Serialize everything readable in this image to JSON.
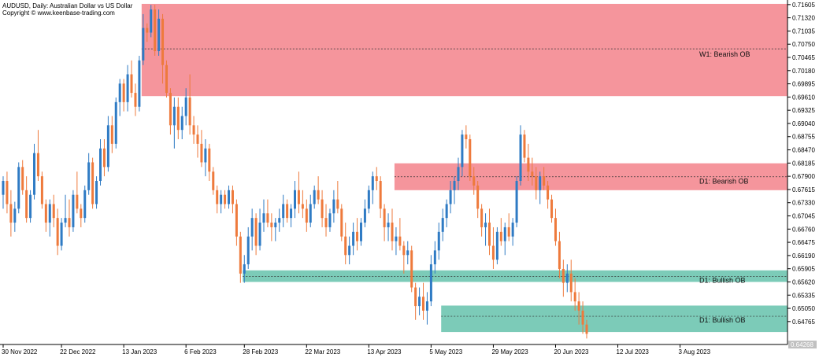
{
  "header": {
    "line1": "AUDUSD, Daily:  Australian Dollar vs US Dollar",
    "line2": "Copyright © www.keenbase-trading.com"
  },
  "chart_data": {
    "type": "candlestick",
    "symbol": "AUDUSD",
    "timeframe": "Daily",
    "ylim": [
      0.6427,
      0.7167
    ],
    "grid": false,
    "y_ticks": [
      "0.71605",
      "0.71320",
      "0.71035",
      "0.70750",
      "0.70465",
      "0.70180",
      "0.69895",
      "0.69610",
      "0.69325",
      "0.69040",
      "0.68755",
      "0.68470",
      "0.68185",
      "0.67900",
      "0.67615",
      "0.67330",
      "0.67045",
      "0.66760",
      "0.66475",
      "0.66190",
      "0.65905",
      "0.65620",
      "0.65335",
      "0.65050",
      "0.64765"
    ],
    "x_ticks": [
      "30 Nov 2022",
      "22 Dec 2022",
      "13 Jan 2023",
      "6 Feb 2023",
      "28 Feb 2023",
      "22 Mar 2023",
      "13 Apr 2023",
      "5 May 2023",
      "29 May 2023",
      "20 Jun 2023",
      "12 Jul 2023",
      "3 Aug 2023"
    ],
    "current_price": "0.64268",
    "colors": {
      "up": "#2f7bc4",
      "down": "#ee7a3c",
      "bearish_zone": "#f5959c",
      "bullish_zone": "#7ccbb8"
    },
    "zones": [
      {
        "label": "W1: Bearish OB",
        "type": "bearish",
        "top": 0.7162,
        "bottom": 0.6963,
        "mid": 0.7065,
        "start": "25 Jan 2023"
      },
      {
        "label": "D1: Bearish OB",
        "type": "bearish",
        "top": 0.6818,
        "bottom": 0.676,
        "mid": 0.6789,
        "start": "8 May 2023"
      },
      {
        "label": "D1: Bullish OB",
        "type": "bullish",
        "top": 0.6587,
        "bottom": 0.6562,
        "mid": 0.6574,
        "start": "2 Mar 2023"
      },
      {
        "label": "D1: Bullish OB",
        "type": "bullish",
        "top": 0.6511,
        "bottom": 0.6454,
        "mid": 0.6488,
        "start": "29 May 2023"
      }
    ],
    "candles": [
      [
        0.675,
        0.679,
        0.672,
        0.678
      ],
      [
        0.678,
        0.68,
        0.671,
        0.673
      ],
      [
        0.673,
        0.676,
        0.666,
        0.669
      ],
      [
        0.669,
        0.6735,
        0.667,
        0.672
      ],
      [
        0.672,
        0.682,
        0.671,
        0.681
      ],
      [
        0.681,
        0.6825,
        0.675,
        0.676
      ],
      [
        0.676,
        0.679,
        0.669,
        0.67
      ],
      [
        0.67,
        0.676,
        0.669,
        0.675
      ],
      [
        0.675,
        0.686,
        0.674,
        0.684
      ],
      [
        0.684,
        0.689,
        0.678,
        0.679
      ],
      [
        0.679,
        0.68,
        0.672,
        0.673
      ],
      [
        0.673,
        0.674,
        0.667,
        0.669
      ],
      [
        0.669,
        0.674,
        0.666,
        0.673
      ],
      [
        0.673,
        0.675,
        0.668,
        0.67
      ],
      [
        0.67,
        0.672,
        0.662,
        0.664
      ],
      [
        0.664,
        0.67,
        0.663,
        0.669
      ],
      [
        0.669,
        0.675,
        0.668,
        0.67
      ],
      [
        0.67,
        0.674,
        0.666,
        0.668
      ],
      [
        0.668,
        0.676,
        0.667,
        0.675
      ],
      [
        0.675,
        0.68,
        0.671,
        0.672
      ],
      [
        0.672,
        0.673,
        0.668,
        0.67
      ],
      [
        0.67,
        0.677,
        0.669,
        0.676
      ],
      [
        0.676,
        0.684,
        0.675,
        0.682
      ],
      [
        0.682,
        0.683,
        0.672,
        0.673
      ],
      [
        0.673,
        0.679,
        0.672,
        0.678
      ],
      [
        0.678,
        0.687,
        0.677,
        0.685
      ],
      [
        0.685,
        0.687,
        0.679,
        0.681
      ],
      [
        0.681,
        0.692,
        0.68,
        0.69
      ],
      [
        0.69,
        0.692,
        0.684,
        0.686
      ],
      [
        0.686,
        0.696,
        0.685,
        0.695
      ],
      [
        0.695,
        0.7,
        0.692,
        0.699
      ],
      [
        0.699,
        0.7,
        0.693,
        0.695
      ],
      [
        0.695,
        0.703,
        0.693,
        0.701
      ],
      [
        0.701,
        0.704,
        0.696,
        0.697
      ],
      [
        0.697,
        0.699,
        0.692,
        0.694
      ],
      [
        0.694,
        0.705,
        0.693,
        0.704
      ],
      [
        0.704,
        0.714,
        0.703,
        0.711
      ],
      [
        0.711,
        0.712,
        0.708,
        0.71
      ],
      [
        0.71,
        0.716,
        0.709,
        0.715
      ],
      [
        0.715,
        0.716,
        0.705,
        0.706
      ],
      [
        0.706,
        0.715,
        0.705,
        0.713
      ],
      [
        0.713,
        0.714,
        0.699,
        0.703
      ],
      [
        0.703,
        0.704,
        0.696,
        0.697
      ],
      [
        0.697,
        0.698,
        0.688,
        0.69
      ],
      [
        0.69,
        0.696,
        0.685,
        0.694
      ],
      [
        0.694,
        0.696,
        0.687,
        0.689
      ],
      [
        0.689,
        0.694,
        0.687,
        0.692
      ],
      [
        0.692,
        0.698,
        0.69,
        0.696
      ],
      [
        0.696,
        0.701,
        0.688,
        0.69
      ],
      [
        0.69,
        0.692,
        0.686,
        0.688
      ],
      [
        0.688,
        0.69,
        0.683,
        0.686
      ],
      [
        0.686,
        0.689,
        0.681,
        0.682
      ],
      [
        0.682,
        0.687,
        0.679,
        0.685
      ],
      [
        0.685,
        0.686,
        0.678,
        0.68
      ],
      [
        0.68,
        0.681,
        0.675,
        0.676
      ],
      [
        0.676,
        0.677,
        0.671,
        0.673
      ],
      [
        0.673,
        0.676,
        0.671,
        0.675
      ],
      [
        0.675,
        0.676,
        0.672,
        0.673
      ],
      [
        0.673,
        0.677,
        0.672,
        0.676
      ],
      [
        0.676,
        0.677,
        0.671,
        0.673
      ],
      [
        0.673,
        0.674,
        0.664,
        0.666
      ],
      [
        0.666,
        0.667,
        0.656,
        0.658
      ],
      [
        0.658,
        0.662,
        0.656,
        0.66
      ],
      [
        0.66,
        0.668,
        0.659,
        0.666
      ],
      [
        0.666,
        0.672,
        0.663,
        0.67
      ],
      [
        0.67,
        0.671,
        0.662,
        0.664
      ],
      [
        0.664,
        0.672,
        0.663,
        0.669
      ],
      [
        0.669,
        0.674,
        0.667,
        0.671
      ],
      [
        0.671,
        0.674,
        0.668,
        0.669
      ],
      [
        0.669,
        0.671,
        0.665,
        0.668
      ],
      [
        0.668,
        0.67,
        0.665,
        0.669
      ],
      [
        0.669,
        0.672,
        0.667,
        0.67
      ],
      [
        0.67,
        0.675,
        0.668,
        0.673
      ],
      [
        0.673,
        0.674,
        0.669,
        0.67
      ],
      [
        0.67,
        0.673,
        0.668,
        0.672
      ],
      [
        0.672,
        0.678,
        0.67,
        0.676
      ],
      [
        0.676,
        0.68,
        0.671,
        0.673
      ],
      [
        0.673,
        0.676,
        0.67,
        0.672
      ],
      [
        0.672,
        0.674,
        0.667,
        0.669
      ],
      [
        0.669,
        0.675,
        0.668,
        0.673
      ],
      [
        0.673,
        0.677,
        0.672,
        0.676
      ],
      [
        0.676,
        0.679,
        0.673,
        0.674
      ],
      [
        0.674,
        0.676,
        0.668,
        0.67
      ],
      [
        0.67,
        0.673,
        0.666,
        0.668
      ],
      [
        0.668,
        0.672,
        0.667,
        0.671
      ],
      [
        0.671,
        0.676,
        0.669,
        0.674
      ],
      [
        0.674,
        0.678,
        0.671,
        0.672
      ],
      [
        0.672,
        0.673,
        0.665,
        0.666
      ],
      [
        0.666,
        0.669,
        0.66,
        0.662
      ],
      [
        0.662,
        0.666,
        0.66,
        0.664
      ],
      [
        0.664,
        0.669,
        0.662,
        0.667
      ],
      [
        0.667,
        0.67,
        0.663,
        0.665
      ],
      [
        0.665,
        0.67,
        0.664,
        0.669
      ],
      [
        0.669,
        0.674,
        0.668,
        0.672
      ],
      [
        0.672,
        0.677,
        0.671,
        0.676
      ],
      [
        0.676,
        0.68,
        0.673,
        0.679
      ],
      [
        0.679,
        0.681,
        0.676,
        0.678
      ],
      [
        0.678,
        0.679,
        0.67,
        0.672
      ],
      [
        0.672,
        0.673,
        0.665,
        0.668
      ],
      [
        0.668,
        0.671,
        0.665,
        0.669
      ],
      [
        0.669,
        0.672,
        0.663,
        0.665
      ],
      [
        0.665,
        0.668,
        0.662,
        0.666
      ],
      [
        0.666,
        0.67,
        0.663,
        0.664
      ],
      [
        0.664,
        0.665,
        0.658,
        0.662
      ],
      [
        0.662,
        0.665,
        0.66,
        0.663
      ],
      [
        0.663,
        0.664,
        0.654,
        0.655
      ],
      [
        0.655,
        0.656,
        0.648,
        0.651
      ],
      [
        0.651,
        0.655,
        0.649,
        0.653
      ],
      [
        0.653,
        0.656,
        0.648,
        0.65
      ],
      [
        0.65,
        0.654,
        0.647,
        0.652
      ],
      [
        0.652,
        0.662,
        0.651,
        0.66
      ],
      [
        0.66,
        0.665,
        0.658,
        0.663
      ],
      [
        0.663,
        0.669,
        0.661,
        0.667
      ],
      [
        0.667,
        0.672,
        0.665,
        0.67
      ],
      [
        0.67,
        0.674,
        0.668,
        0.673
      ],
      [
        0.673,
        0.678,
        0.671,
        0.676
      ],
      [
        0.676,
        0.679,
        0.673,
        0.678
      ],
      [
        0.678,
        0.683,
        0.676,
        0.681
      ],
      [
        0.681,
        0.689,
        0.679,
        0.688
      ],
      [
        0.688,
        0.69,
        0.685,
        0.687
      ],
      [
        0.687,
        0.688,
        0.678,
        0.679
      ],
      [
        0.679,
        0.681,
        0.675,
        0.677
      ],
      [
        0.677,
        0.678,
        0.67,
        0.672
      ],
      [
        0.672,
        0.673,
        0.666,
        0.668
      ],
      [
        0.668,
        0.671,
        0.664,
        0.669
      ],
      [
        0.669,
        0.672,
        0.662,
        0.664
      ],
      [
        0.664,
        0.668,
        0.659,
        0.661
      ],
      [
        0.661,
        0.668,
        0.66,
        0.667
      ],
      [
        0.667,
        0.67,
        0.664,
        0.665
      ],
      [
        0.665,
        0.669,
        0.662,
        0.668
      ],
      [
        0.668,
        0.671,
        0.665,
        0.666
      ],
      [
        0.666,
        0.67,
        0.664,
        0.669
      ],
      [
        0.669,
        0.679,
        0.668,
        0.678
      ],
      [
        0.678,
        0.69,
        0.677,
        0.688
      ],
      [
        0.688,
        0.689,
        0.682,
        0.683
      ],
      [
        0.683,
        0.686,
        0.678,
        0.68
      ],
      [
        0.68,
        0.683,
        0.677,
        0.679
      ],
      [
        0.679,
        0.681,
        0.674,
        0.676
      ],
      [
        0.676,
        0.68,
        0.673,
        0.679
      ],
      [
        0.679,
        0.681,
        0.676,
        0.677
      ],
      [
        0.677,
        0.678,
        0.672,
        0.674
      ],
      [
        0.674,
        0.675,
        0.669,
        0.67
      ],
      [
        0.67,
        0.672,
        0.664,
        0.665
      ],
      [
        0.665,
        0.667,
        0.657,
        0.659
      ],
      [
        0.659,
        0.661,
        0.653,
        0.656
      ],
      [
        0.656,
        0.66,
        0.654,
        0.658
      ],
      [
        0.658,
        0.661,
        0.652,
        0.654
      ],
      [
        0.654,
        0.657,
        0.65,
        0.652
      ],
      [
        0.652,
        0.654,
        0.647,
        0.65
      ],
      [
        0.65,
        0.652,
        0.645,
        0.647
      ],
      [
        0.647,
        0.648,
        0.644,
        0.645
      ]
    ]
  }
}
